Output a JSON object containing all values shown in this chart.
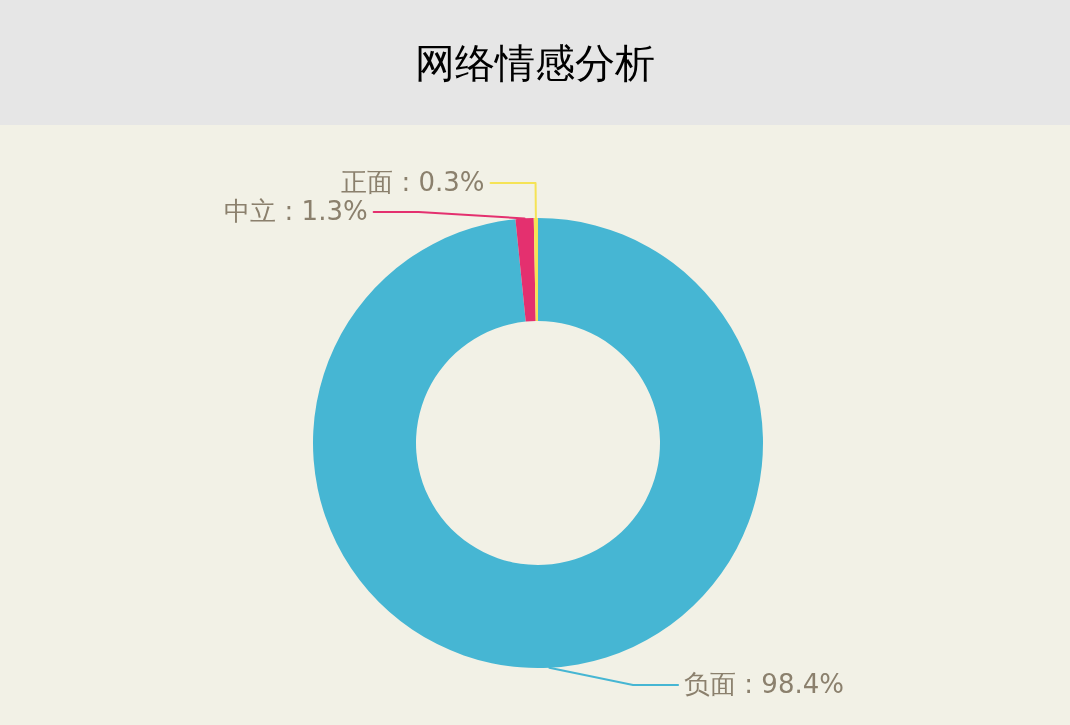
{
  "chart_data": {
    "type": "donut",
    "title": "网络情感分析",
    "categories": [
      "负面",
      "中立",
      "正面"
    ],
    "values": [
      98.4,
      1.3,
      0.3
    ],
    "colors": [
      "#46b6d3",
      "#e4306f",
      "#f5e356"
    ],
    "value_labels": [
      "98.4%",
      "1.3%",
      "0.3%"
    ]
  }
}
